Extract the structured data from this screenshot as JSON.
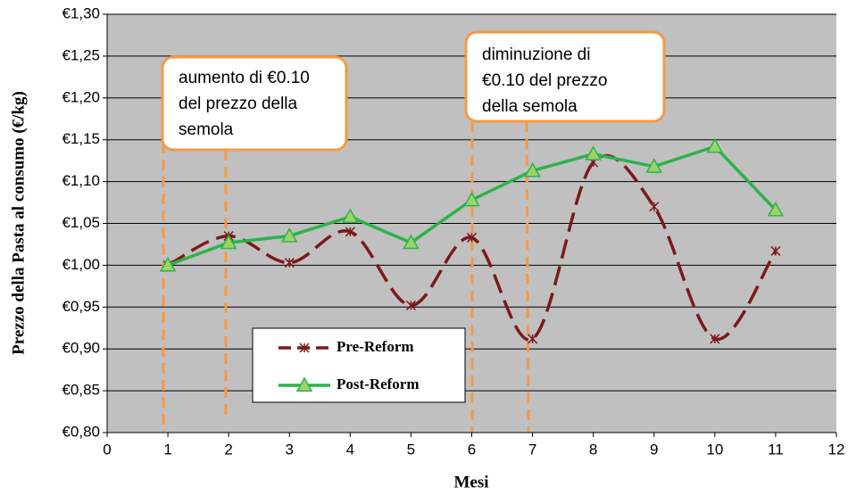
{
  "chart_data": {
    "type": "line",
    "x_label": "Mesi",
    "y_label": "Prezzo della  Pasta al consumo (€/kg)",
    "x": [
      1,
      2,
      3,
      4,
      5,
      6,
      7,
      8,
      9,
      10,
      11
    ],
    "series": [
      {
        "name": "Pre-Reform",
        "color": "#7b1a1a",
        "values": [
          1.0,
          1.035,
          1.003,
          1.04,
          0.952,
          1.033,
          0.912,
          1.123,
          1.07,
          0.912,
          1.017
        ]
      },
      {
        "name": "Post-Reform",
        "color": "#2db34a",
        "values": [
          1.0,
          1.027,
          1.035,
          1.058,
          1.027,
          1.078,
          1.113,
          1.133,
          1.118,
          1.142,
          1.066
        ]
      }
    ],
    "xlim": [
      0,
      12
    ],
    "xticks": [
      0,
      1,
      2,
      3,
      4,
      5,
      6,
      7,
      8,
      9,
      10,
      11,
      12
    ],
    "ylim": [
      0.8,
      1.3
    ],
    "yticks": [
      {
        "value": 0.8,
        "label": "€0,80"
      },
      {
        "value": 0.85,
        "label": "€0,85"
      },
      {
        "value": 0.9,
        "label": "€0,90"
      },
      {
        "value": 0.95,
        "label": "€0,95"
      },
      {
        "value": 1.0,
        "label": "€1,00"
      },
      {
        "value": 1.05,
        "label": "€1,05"
      },
      {
        "value": 1.1,
        "label": "€1,10"
      },
      {
        "value": 1.15,
        "label": "€1,15"
      },
      {
        "value": 1.2,
        "label": "€1,20"
      },
      {
        "value": 1.25,
        "label": "€1,25"
      },
      {
        "value": 1.3,
        "label": "€1,30"
      }
    ],
    "grid": true,
    "annotations": [
      {
        "lines": [
          "aumento di €0.10",
          "del prezzo della",
          "semola"
        ]
      },
      {
        "lines": [
          "diminuzione di",
          "€0.10 del prezzo",
          "della semola"
        ]
      }
    ]
  }
}
